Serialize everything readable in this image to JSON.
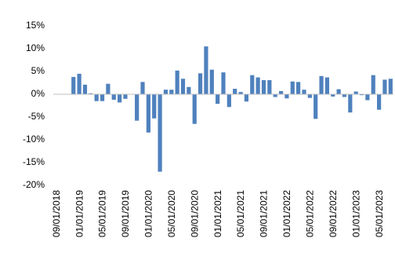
{
  "chart_data": {
    "type": "bar",
    "categories": [
      "09/01/2018",
      null,
      null,
      null,
      "01/01/2019",
      null,
      null,
      null,
      "05/01/2019",
      null,
      null,
      null,
      "09/01/2019",
      null,
      null,
      null,
      "01/01/2020",
      null,
      null,
      null,
      "05/01/2020",
      null,
      null,
      null,
      "09/01/2020",
      null,
      null,
      null,
      "01/01/2021",
      null,
      null,
      null,
      "05/01/2021",
      null,
      null,
      null,
      "09/01/2021",
      null,
      null,
      null,
      "01/01/2022",
      null,
      null,
      null,
      "05/01/2022",
      null,
      null,
      null,
      "09/01/2022",
      null,
      null,
      null,
      "01/01/2023",
      null,
      null,
      null,
      "05/01/2023",
      null,
      null
    ],
    "values": [
      0,
      0,
      0,
      3.8,
      4.5,
      2.1,
      0.2,
      -1.5,
      -1.5,
      2.3,
      -1.2,
      -1.8,
      -1.0,
      0,
      -5.8,
      2.7,
      -8.4,
      -5.3,
      -17.0,
      1.0,
      1.0,
      5.2,
      3.4,
      1.6,
      -6.5,
      4.6,
      10.5,
      5.4,
      -2.1,
      4.8,
      -2.8,
      1.2,
      0.5,
      -1.6,
      4.2,
      3.7,
      3.1,
      3.1,
      -0.6,
      0.7,
      -0.9,
      2.8,
      2.7,
      1.0,
      -0.8,
      -5.4,
      4.0,
      3.7,
      -0.5,
      1.1,
      -0.6,
      -4.0,
      0.6,
      -0.2,
      -1.3,
      4.2,
      -3.4,
      3.2,
      3.4
    ],
    "color": "#4f81bd",
    "ylim": [
      -20,
      15
    ],
    "yticks": [
      {
        "value": -20,
        "label": "-20%"
      },
      {
        "value": -15,
        "label": "-15%"
      },
      {
        "value": -10,
        "label": "-10%"
      },
      {
        "value": -5,
        "label": "-5%"
      },
      {
        "value": 0,
        "label": "0%"
      },
      {
        "value": 5,
        "label": "5%"
      },
      {
        "value": 10,
        "label": "10%"
      },
      {
        "value": 15,
        "label": "15%"
      }
    ],
    "grid": false
  }
}
